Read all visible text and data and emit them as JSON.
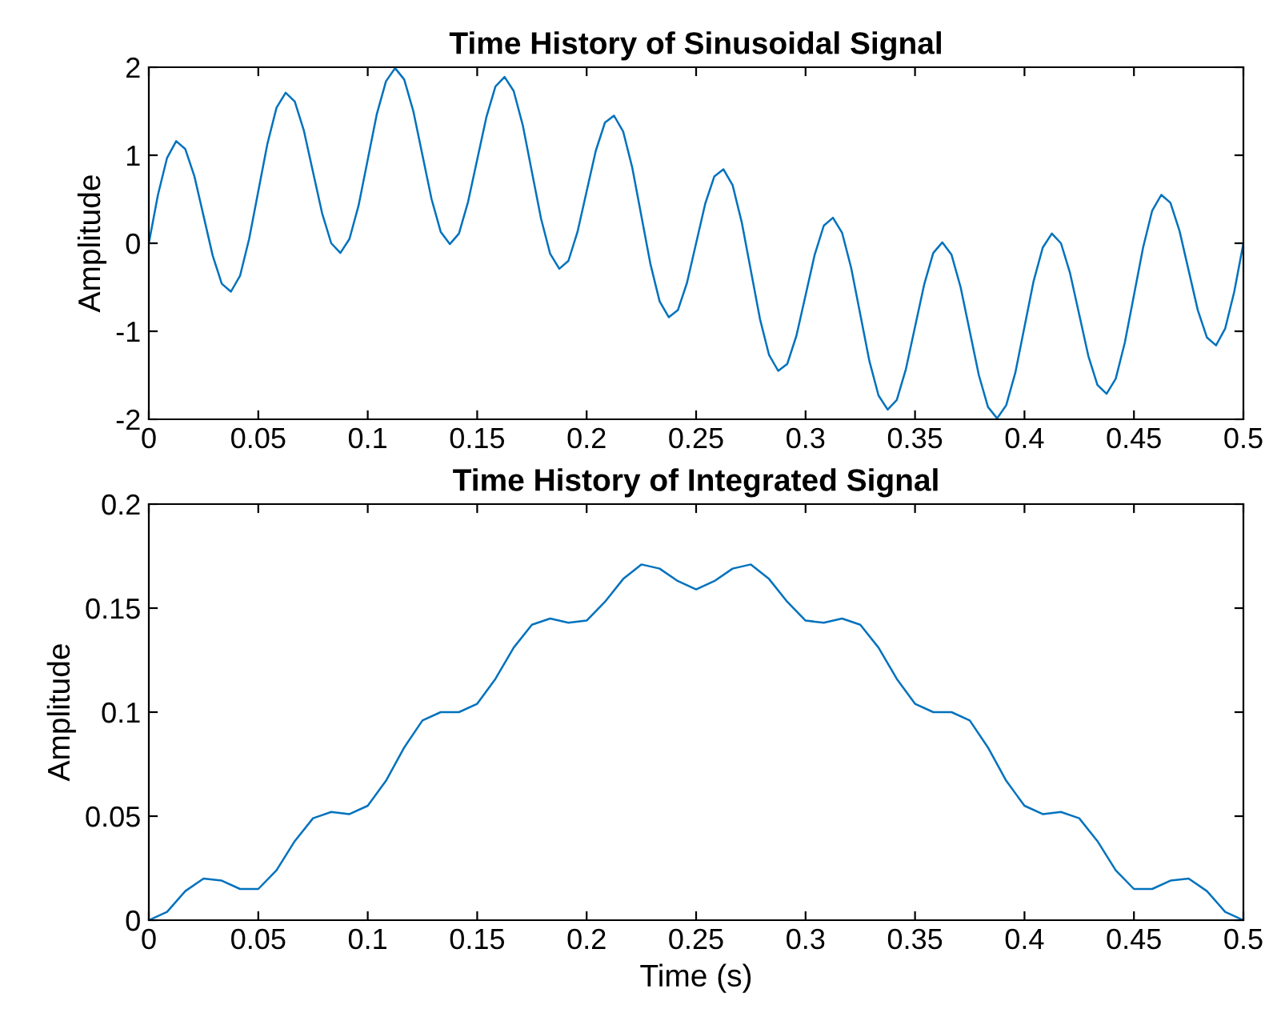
{
  "chart_data": [
    {
      "type": "line",
      "title": "Time History of Sinusoidal Signal",
      "ylabel": "Amplitude",
      "xlim": [
        0,
        0.5
      ],
      "xticks": [
        0,
        0.05,
        0.1,
        0.15,
        0.2,
        0.25,
        0.3,
        0.35,
        0.4,
        0.45,
        0.5
      ],
      "ylim": [
        -2,
        2
      ],
      "yticks": [
        -2,
        -1,
        0,
        1,
        2
      ],
      "grid": false,
      "marker": "none",
      "line_style": "solid",
      "series": [
        {
          "color": "#0072bd",
          "x": [
            0,
            0.00417,
            0.00833,
            0.0125,
            0.01667,
            0.02083,
            0.025,
            0.02917,
            0.03333,
            0.0375,
            0.04167,
            0.04583,
            0.05,
            0.05417,
            0.05833,
            0.0625,
            0.06667,
            0.07083,
            0.075,
            0.07917,
            0.08333,
            0.0875,
            0.09167,
            0.09583,
            0.1,
            0.10417,
            0.10833,
            0.1125,
            0.11667,
            0.12083,
            0.125,
            0.12917,
            0.13333,
            0.1375,
            0.14167,
            0.14583,
            0.15,
            0.15417,
            0.15833,
            0.1625,
            0.16667,
            0.17083,
            0.175,
            0.17917,
            0.18333,
            0.1875,
            0.19167,
            0.19583,
            0.2,
            0.20417,
            0.20833,
            0.2125,
            0.21667,
            0.22083,
            0.225,
            0.22917,
            0.23333,
            0.2375,
            0.24167,
            0.24583,
            0.25,
            0.25417,
            0.25833,
            0.2625,
            0.26667,
            0.27083,
            0.275,
            0.27917,
            0.28333,
            0.2875,
            0.29167,
            0.29583,
            0.3,
            0.30417,
            0.30833,
            0.3125,
            0.31667,
            0.32083,
            0.325,
            0.32917,
            0.33333,
            0.3375,
            0.34167,
            0.34583,
            0.35,
            0.35417,
            0.35833,
            0.3625,
            0.36667,
            0.37083,
            0.375,
            0.37917,
            0.38333,
            0.3875,
            0.39167,
            0.39583,
            0.4,
            0.40417,
            0.40833,
            0.4125,
            0.41667,
            0.42083,
            0.425,
            0.42917,
            0.43333,
            0.4375,
            0.44167,
            0.44583,
            0.45,
            0.45417,
            0.45833,
            0.4625,
            0.46667,
            0.47083,
            0.475,
            0.47917,
            0.48333,
            0.4875,
            0.49167,
            0.49583,
            0.5
          ],
          "values": [
            0,
            0.55,
            0.97,
            1.16,
            1.07,
            0.76,
            0.31,
            -0.14,
            -0.46,
            -0.55,
            -0.37,
            0.05,
            0.59,
            1.13,
            1.54,
            1.71,
            1.61,
            1.28,
            0.81,
            0.34,
            0,
            -0.11,
            0.05,
            0.43,
            0.95,
            1.47,
            1.84,
            1.99,
            1.86,
            1.5,
            1,
            0.5,
            0.13,
            -0.01,
            0.11,
            0.47,
            0.95,
            1.43,
            1.78,
            1.89,
            1.73,
            1.34,
            0.81,
            0.28,
            -0.12,
            -0.29,
            -0.2,
            0.13,
            0.59,
            1.05,
            1.37,
            1.45,
            1.27,
            0.86,
            0.31,
            -0.24,
            -0.66,
            -0.84,
            -0.76,
            -0.45,
            0,
            0.45,
            0.76,
            0.84,
            0.66,
            0.24,
            -0.31,
            -0.86,
            -1.27,
            -1.45,
            -1.37,
            -1.05,
            -0.59,
            -0.13,
            0.2,
            0.29,
            0.12,
            -0.28,
            -0.81,
            -1.34,
            -1.73,
            -1.89,
            -1.78,
            -1.43,
            -0.95,
            -0.47,
            -0.11,
            0.01,
            -0.13,
            -0.5,
            -1,
            -1.5,
            -1.86,
            -1.99,
            -1.84,
            -1.47,
            -0.95,
            -0.43,
            -0.05,
            0.11,
            0,
            -0.34,
            -0.81,
            -1.28,
            -1.61,
            -1.71,
            -1.54,
            -1.13,
            -0.59,
            -0.05,
            0.37,
            0.55,
            0.46,
            0.14,
            -0.31,
            -0.76,
            -1.07,
            -1.16,
            -0.97,
            -0.55,
            0
          ]
        }
      ]
    },
    {
      "type": "line",
      "title": "Time History of Integrated Signal",
      "xlabel": "Time (s)",
      "ylabel": "Amplitude",
      "xlim": [
        0,
        0.5
      ],
      "xticks": [
        0,
        0.05,
        0.1,
        0.15,
        0.2,
        0.25,
        0.3,
        0.35,
        0.4,
        0.45,
        0.5
      ],
      "ylim": [
        0,
        0.2
      ],
      "yticks": [
        0,
        0.05,
        0.1,
        0.15,
        0.2
      ],
      "grid": false,
      "marker": "none",
      "line_style": "solid",
      "series": [
        {
          "color": "#0072bd",
          "x": [
            0,
            0.00833,
            0.01667,
            0.025,
            0.03333,
            0.04167,
            0.05,
            0.05833,
            0.06667,
            0.075,
            0.08333,
            0.09167,
            0.1,
            0.10833,
            0.11667,
            0.125,
            0.13333,
            0.14167,
            0.15,
            0.15833,
            0.16667,
            0.175,
            0.18333,
            0.19167,
            0.2,
            0.20833,
            0.21667,
            0.225,
            0.23333,
            0.24167,
            0.25,
            0.25833,
            0.26667,
            0.275,
            0.28333,
            0.29167,
            0.3,
            0.30833,
            0.31667,
            0.325,
            0.33333,
            0.34167,
            0.35,
            0.35833,
            0.36667,
            0.375,
            0.38333,
            0.39167,
            0.4,
            0.40833,
            0.41667,
            0.425,
            0.43333,
            0.44167,
            0.45,
            0.45833,
            0.46667,
            0.475,
            0.48333,
            0.49167,
            0.5
          ],
          "values": [
            0,
            0.004,
            0.014,
            0.02,
            0.019,
            0.015,
            0.015,
            0.024,
            0.038,
            0.049,
            0.052,
            0.051,
            0.055,
            0.067,
            0.083,
            0.096,
            0.1,
            0.1,
            0.104,
            0.116,
            0.131,
            0.142,
            0.145,
            0.143,
            0.144,
            0.153,
            0.164,
            0.171,
            0.169,
            0.163,
            0.159,
            0.163,
            0.169,
            0.171,
            0.164,
            0.153,
            0.144,
            0.143,
            0.145,
            0.142,
            0.131,
            0.116,
            0.104,
            0.1,
            0.1,
            0.096,
            0.083,
            0.067,
            0.055,
            0.051,
            0.052,
            0.049,
            0.038,
            0.024,
            0.015,
            0.015,
            0.019,
            0.02,
            0.014,
            0.004,
            0
          ]
        }
      ]
    }
  ]
}
